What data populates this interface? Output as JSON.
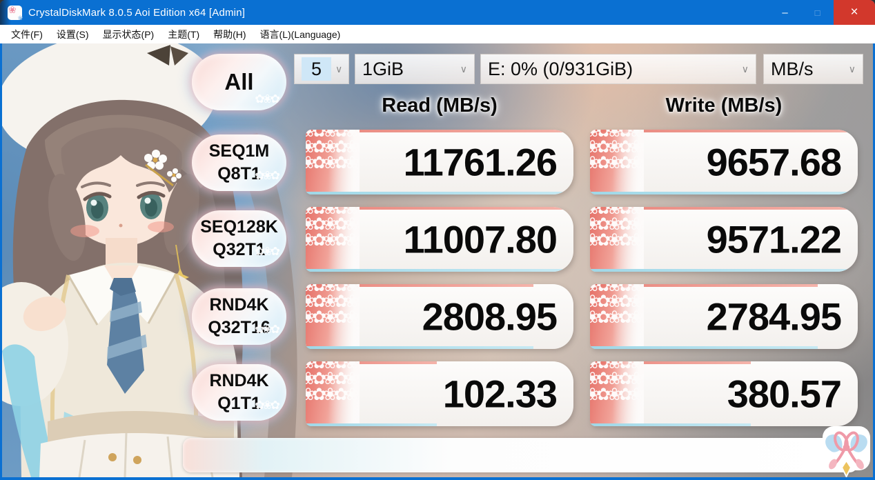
{
  "window": {
    "title": "CrystalDiskMark 8.0.5 Aoi Edition x64 [Admin]",
    "minimize_label": "–",
    "maximize_label": "□",
    "close_label": "×"
  },
  "menu_bar": {
    "items": [
      "文件(F)",
      "设置(S)",
      "显示状态(P)",
      "主题(T)",
      "帮助(H)",
      "语言(L)(Language)"
    ]
  },
  "toolbar": {
    "all_button_label": "All",
    "test_count": "5",
    "test_size": "1GiB",
    "target_drive": "E: 0% (0/931GiB)",
    "unit": "MB/s"
  },
  "icons": {
    "chevron": "∨"
  },
  "results": {
    "read_header": "Read (MB/s)",
    "write_header": "Write (MB/s)",
    "rows": [
      {
        "test": "SEQ1M",
        "queue_threads": "Q8T1",
        "read": "11761.26",
        "write": "9657.68",
        "read_fill_pct": 100,
        "write_fill_pct": 98
      },
      {
        "test": "SEQ128K",
        "queue_threads": "Q32T1",
        "read": "11007.80",
        "write": "9571.22",
        "read_fill_pct": 98,
        "write_fill_pct": 98
      },
      {
        "test": "RND4K",
        "queue_threads": "Q32T16",
        "read": "2808.95",
        "write": "2784.95",
        "read_fill_pct": 85,
        "write_fill_pct": 85
      },
      {
        "test": "RND4K",
        "queue_threads": "Q1T1",
        "read": "102.33",
        "write": "380.57",
        "read_fill_pct": 49,
        "write_fill_pct": 60
      }
    ]
  },
  "colors": {
    "titlebar_blue": "#0a70d2",
    "close_red": "#d2382c",
    "accent_pink": "#e8837a",
    "accent_cyan": "#9fd8e8"
  }
}
